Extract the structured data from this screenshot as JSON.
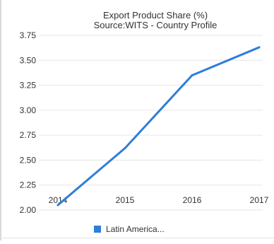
{
  "chart_data": {
    "type": "line",
    "title": "Export Product Share (%)",
    "subtitle": "Source:WITS - Country Profile",
    "x": [
      "2014",
      "2015",
      "2016",
      "2017"
    ],
    "series": [
      {
        "name": "Latin America...",
        "color": "#2f7ed8",
        "values": [
          2.05,
          2.62,
          3.35,
          3.63
        ]
      }
    ],
    "y_ticks": [
      "2.00",
      "2.25",
      "2.50",
      "2.75",
      "3.00",
      "3.25",
      "3.50",
      "3.75"
    ],
    "ylim": [
      2.0,
      3.75
    ],
    "grid": true,
    "legend_position": "bottom-center"
  }
}
